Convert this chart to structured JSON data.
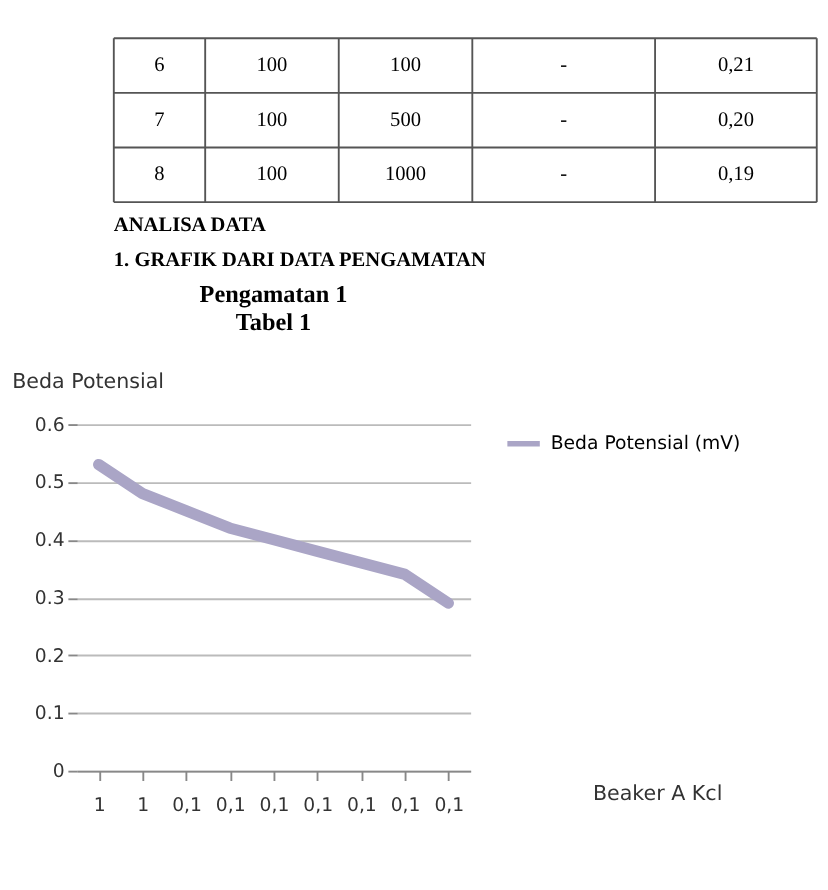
{
  "chart_data": [
    {
      "type": "other",
      "cells": [
        [
          "6",
          "100",
          "100",
          "-",
          "0,21"
        ],
        [
          "7",
          "100",
          "500",
          "-",
          "0,20"
        ],
        [
          "8",
          "100",
          "1000",
          "-",
          "0,19"
        ]
      ],
      "annotations": [
        "ANALISA DATA",
        "1. GRAFIK DARI DATA PENGAMATAN"
      ]
    },
    {
      "type": "line",
      "title": "Pengamatan 1\nTabel 1",
      "ylabel": "Beda Potensial",
      "xlabel": "Beaker A Kcl",
      "categories": [
        "1",
        "1",
        "0,1",
        "0,1",
        "0,1",
        "0,1",
        "0,1",
        "0,1",
        "0,1"
      ],
      "series": [
        {
          "name": "Beda Potensial (mV)",
          "color": "#aaa5c6",
          "values": [
            0.53,
            0.48,
            0.45,
            0.42,
            0.4,
            0.38,
            0.36,
            0.34,
            0.29
          ]
        }
      ],
      "ylim": [
        0,
        0.6
      ],
      "yticks": [
        0,
        0.1,
        0.2,
        0.3,
        0.4,
        0.5,
        0.6
      ],
      "grid": "y",
      "legend": "right",
      "marker": "none",
      "line_style": "solid"
    }
  ]
}
